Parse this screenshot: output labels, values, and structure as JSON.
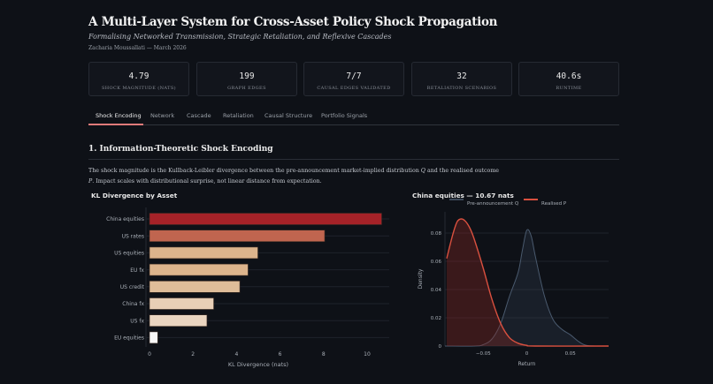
{
  "header": {
    "title": "A Multi-Layer System for Cross-Asset Policy Shock Propagation",
    "subtitle": "Formalising Networked Transmission, Strategic Retaliation, and Reflexive Cascades",
    "author": "Zacharia Moussallati — March 2026"
  },
  "metrics": [
    {
      "value": "4.79",
      "label": "SHOCK MAGNITUDE (NATS)"
    },
    {
      "value": "199",
      "label": "GRAPH EDGES"
    },
    {
      "value": "7/7",
      "label": "CAUSAL EDGES VALIDATED"
    },
    {
      "value": "32",
      "label": "RETALIATION SCENARIOS"
    },
    {
      "value": "40.6s",
      "label": "RUNTIME"
    }
  ],
  "tabs": [
    {
      "label": "Shock Encoding",
      "active": true
    },
    {
      "label": "Network"
    },
    {
      "label": "Cascade"
    },
    {
      "label": "Retaliation"
    },
    {
      "label": "Causal Structure"
    },
    {
      "label": "Portfolio Signals"
    }
  ],
  "section": {
    "heading": "1. Information-Theoretic Shock Encoding",
    "paragraph_1": "The shock magnitude is the Kullback-Leibler divergence between the pre-announcement market-implied distribution ",
    "q": "Q",
    "paragraph_2": " and the realised outcome ",
    "p": "P",
    "paragraph_3": ". Impact scales with distributional surprise, not linear distance from expectation."
  },
  "chart_data": [
    {
      "type": "bar",
      "orientation": "horizontal",
      "title": "KL Divergence by Asset",
      "xlabel": "KL Divergence (nats)",
      "ylabel": "",
      "xlim": [
        0,
        11
      ],
      "xticks": [
        0,
        2,
        4,
        6,
        8,
        10
      ],
      "categories": [
        "China equities",
        "US rates",
        "US equities",
        "EU fx",
        "US credit",
        "China fx",
        "US fx",
        "EU equities"
      ],
      "values": [
        10.67,
        8.05,
        4.98,
        4.53,
        4.15,
        2.95,
        2.64,
        0.38
      ],
      "colors": [
        "#a52228",
        "#c0654f",
        "#dcb48c",
        "#dcb48c",
        "#dfbd99",
        "#e8cfb6",
        "#ead5c0",
        "#f7f7f7"
      ]
    },
    {
      "type": "area",
      "title": "China equities — 10.67 nats",
      "xlabel": "Return",
      "ylabel": "Density",
      "xlim": [
        -0.094,
        0.094
      ],
      "ylim": [
        0,
        0.095
      ],
      "xticks": [
        {
          "v": -0.05,
          "label": "−0.05"
        },
        {
          "v": 0,
          "label": "0"
        },
        {
          "v": 0.05,
          "label": "0.05"
        }
      ],
      "yticks": [
        0,
        0.02,
        0.04,
        0.06,
        0.08
      ],
      "legend": "top",
      "series": [
        {
          "name": "Pre-announcement Q",
          "color": "#4a5a6e",
          "x": [
            -0.094,
            -0.06,
            -0.05,
            -0.04,
            -0.03,
            -0.02,
            -0.01,
            -0.005,
            0,
            0.005,
            0.01,
            0.02,
            0.03,
            0.04,
            0.05,
            0.06,
            0.07,
            0.094
          ],
          "y": [
            0,
            0,
            0.001,
            0.005,
            0.016,
            0.035,
            0.052,
            0.068,
            0.082,
            0.078,
            0.063,
            0.036,
            0.019,
            0.012,
            0.008,
            0.003,
            0.0003,
            0
          ]
        },
        {
          "name": "Realised P",
          "color": "#d9503f",
          "x": [
            -0.092,
            -0.085,
            -0.08,
            -0.075,
            -0.07,
            -0.065,
            -0.06,
            -0.05,
            -0.04,
            -0.03,
            -0.02,
            -0.01,
            0,
            0.01,
            0.094
          ],
          "y": [
            0.062,
            0.079,
            0.088,
            0.09,
            0.088,
            0.083,
            0.075,
            0.055,
            0.033,
            0.016,
            0.006,
            0.002,
            0.0005,
            0,
            0
          ]
        }
      ]
    }
  ]
}
